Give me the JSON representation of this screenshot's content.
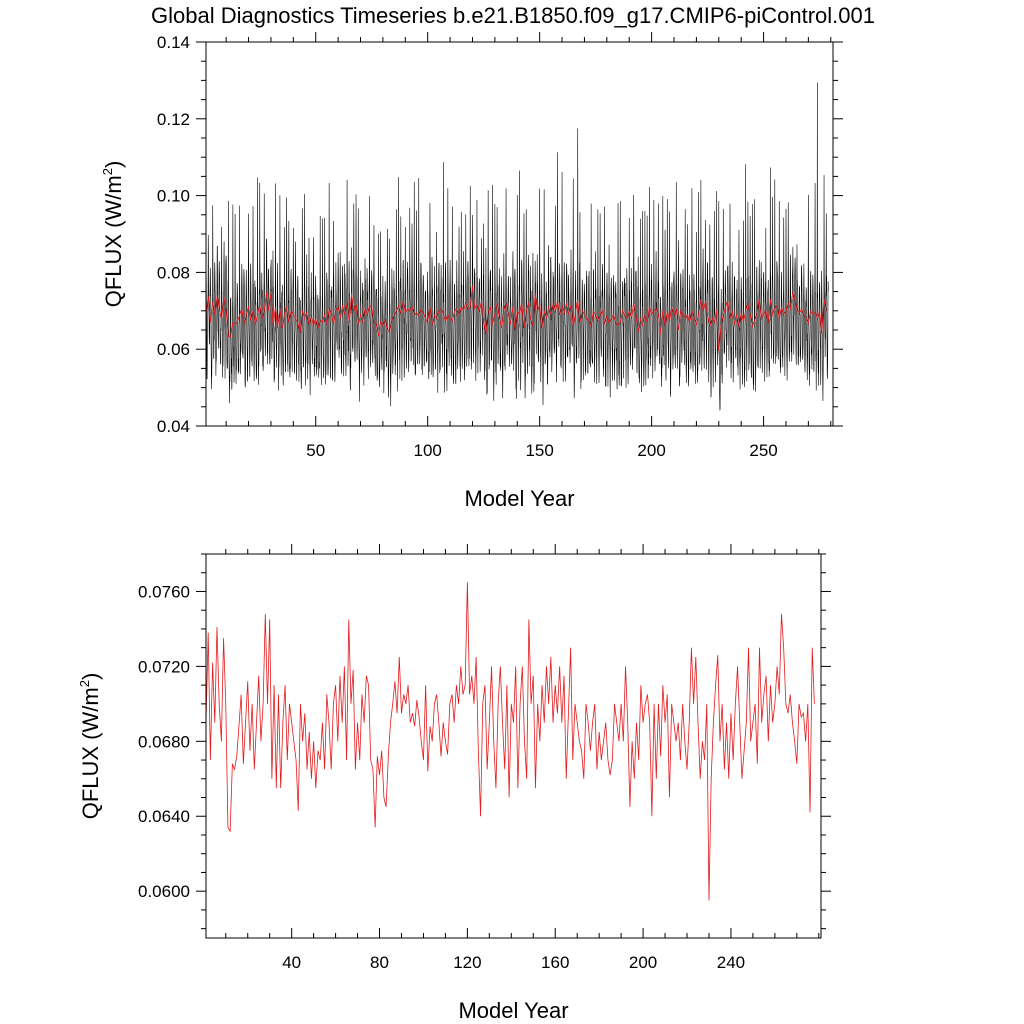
{
  "title": "Global Diagnostics Timeseries b.e21.B1850.f09_g17.CMIP6-piControl.001",
  "chart_data": [
    {
      "type": "line",
      "xlabel": "Model Year",
      "ylabel_main": "QFLUX (W/m",
      "ylabel_sup": "2",
      "ylabel_close": ")",
      "xlim": [
        1,
        281
      ],
      "ylim": [
        0.04,
        0.14
      ],
      "xticks": [
        50,
        100,
        150,
        200,
        250
      ],
      "xtick_labels": [
        "50",
        "100",
        "150",
        "200",
        "250"
      ],
      "yticks": [
        0.04,
        0.06,
        0.08,
        0.1,
        0.12,
        0.14
      ],
      "ytick_labels": [
        "0.04",
        "0.06",
        "0.08",
        "0.10",
        "0.12",
        "0.14"
      ],
      "grid": false,
      "series": [
        {
          "name": "monthly",
          "color": "#000000",
          "description_values": "monthly global mean QFLUX, oscillating roughly 0.045–0.11 with a peak near 0.13 at year ~277"
        },
        {
          "name": "annual",
          "color": "#e41a1c"
        }
      ]
    },
    {
      "type": "line",
      "xlabel": "Model Year",
      "ylabel_main": "QFLUX (W/m",
      "ylabel_sup": "2",
      "ylabel_close": ")",
      "xlim": [
        1,
        281
      ],
      "ylim": [
        0.0575,
        0.078
      ],
      "xticks": [
        40,
        80,
        120,
        160,
        200,
        240
      ],
      "xtick_labels": [
        "40",
        "80",
        "120",
        "160",
        "200",
        "240"
      ],
      "yticks": [
        0.06,
        0.064,
        0.068,
        0.072,
        0.076
      ],
      "ytick_labels": [
        "0.0600",
        "0.0640",
        "0.0680",
        "0.0720",
        "0.0760"
      ],
      "grid": false,
      "series": [
        {
          "name": "annual",
          "color": "#e41a1c",
          "x_start": 1,
          "values": [
            0.069,
            0.0738,
            0.067,
            0.0722,
            0.069,
            0.0741,
            0.07,
            0.068,
            0.0735,
            0.07,
            0.0634,
            0.0632,
            0.0668,
            0.0665,
            0.0672,
            0.0688,
            0.0705,
            0.0668,
            0.069,
            0.0712,
            0.0675,
            0.07,
            0.0665,
            0.069,
            0.0715,
            0.068,
            0.07,
            0.0748,
            0.07,
            0.0745,
            0.066,
            0.071,
            0.0655,
            0.0705,
            0.0655,
            0.069,
            0.071,
            0.067,
            0.07,
            0.069,
            0.068,
            0.067,
            0.0643,
            0.07,
            0.068,
            0.0695,
            0.0665,
            0.0685,
            0.066,
            0.068,
            0.0655,
            0.0675,
            0.067,
            0.069,
            0.0665,
            0.0705,
            0.069,
            0.0665,
            0.07,
            0.071,
            0.068,
            0.0715,
            0.069,
            0.072,
            0.067,
            0.0745,
            0.07,
            0.0718,
            0.0665,
            0.069,
            0.067,
            0.0705,
            0.069,
            0.0715,
            0.071,
            0.067,
            0.0665,
            0.0634,
            0.0672,
            0.0662,
            0.0675,
            0.065,
            0.0645,
            0.0672,
            0.069,
            0.07,
            0.0712,
            0.0695,
            0.0725,
            0.0695,
            0.0705,
            0.07,
            0.071,
            0.069,
            0.0695,
            0.0688,
            0.0702,
            0.0693,
            0.068,
            0.067,
            0.071,
            0.0664,
            0.0688,
            0.068,
            0.07,
            0.0705,
            0.069,
            0.0672,
            0.069,
            0.068,
            0.0673,
            0.07,
            0.0705,
            0.069,
            0.071,
            0.07,
            0.072,
            0.0705,
            0.071,
            0.0765,
            0.0705,
            0.0715,
            0.07,
            0.0725,
            0.0675,
            0.064,
            0.07,
            0.071,
            0.0665,
            0.069,
            0.072,
            0.068,
            0.0655,
            0.07,
            0.072,
            0.069,
            0.0665,
            0.071,
            0.065,
            0.07,
            0.069,
            0.072,
            0.0655,
            0.07,
            0.072,
            0.068,
            0.066,
            0.0745,
            0.07,
            0.0715,
            0.0655,
            0.07,
            0.068,
            0.071,
            0.069,
            0.072,
            0.07,
            0.0725,
            0.069,
            0.071,
            0.0695,
            0.072,
            0.069,
            0.0715,
            0.066,
            0.0695,
            0.073,
            0.067,
            0.07,
            0.069,
            0.068,
            0.0675,
            0.066,
            0.07,
            0.069,
            0.0675,
            0.069,
            0.07,
            0.0665,
            0.0685,
            0.067,
            0.068,
            0.069,
            0.067,
            0.0662,
            0.067,
            0.07,
            0.069,
            0.068,
            0.07,
            0.068,
            0.072,
            0.069,
            0.0645,
            0.068,
            0.066,
            0.069,
            0.067,
            0.071,
            0.069,
            0.07,
            0.0705,
            0.069,
            0.064,
            0.07,
            0.066,
            0.07,
            0.0672,
            0.071,
            0.069,
            0.0705,
            0.065,
            0.07,
            0.069,
            0.068,
            0.069,
            0.067,
            0.07,
            0.068,
            0.0665,
            0.069,
            0.073,
            0.07,
            0.0725,
            0.069,
            0.066,
            0.068,
            0.067,
            0.07,
            0.0595,
            0.066,
            0.069,
            0.071,
            0.0726,
            0.068,
            0.07,
            0.0665,
            0.069,
            0.066,
            0.0695,
            0.067,
            0.07,
            0.072,
            0.069,
            0.066,
            0.0675,
            0.069,
            0.073,
            0.068,
            0.069,
            0.07,
            0.0668,
            0.073,
            0.069,
            0.0705,
            0.0715,
            0.068,
            0.071,
            0.069,
            0.07,
            0.072,
            0.0705,
            0.0748,
            0.073,
            0.07,
            0.0695,
            0.0705,
            0.069,
            0.068,
            0.0668,
            0.07,
            0.0693,
            0.0695,
            0.068,
            0.07,
            0.0642,
            0.073,
            0.07
          ]
        }
      ]
    }
  ]
}
